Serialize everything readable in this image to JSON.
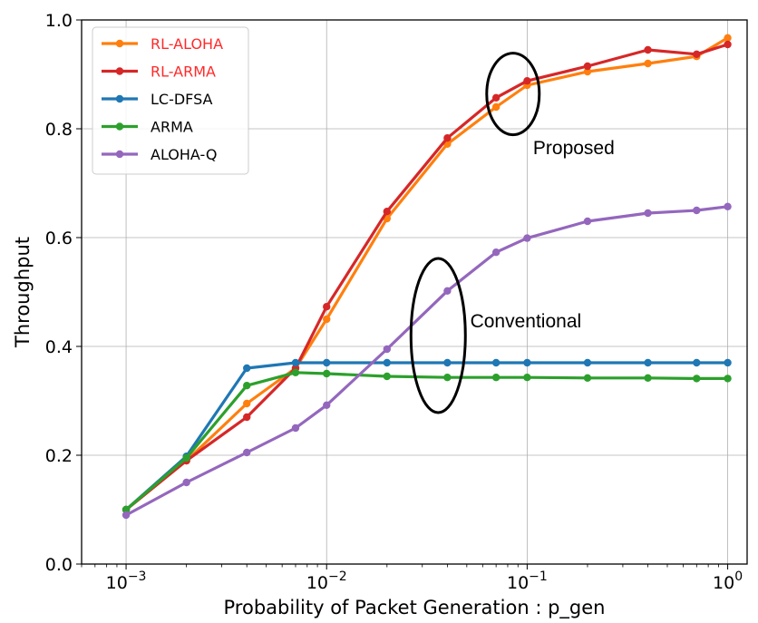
{
  "chart_data": {
    "type": "line",
    "title": "",
    "xlabel": "Probability of Packet Generation : p_gen",
    "ylabel": "Throughput",
    "xscale": "log",
    "xlim": [
      0.0006,
      1.25
    ],
    "ylim": [
      0.0,
      1.0
    ],
    "grid": true,
    "legend_position": "top-left",
    "x_ticks": [
      {
        "value": 0.001,
        "base": "10",
        "exp": "−3"
      },
      {
        "value": 0.01,
        "base": "10",
        "exp": "−2"
      },
      {
        "value": 0.1,
        "base": "10",
        "exp": "−1"
      },
      {
        "value": 1,
        "base": "10",
        "exp": "0"
      }
    ],
    "y_ticks": [
      "0.0",
      "0.2",
      "0.4",
      "0.6",
      "0.8",
      "1.0"
    ],
    "x": [
      0.001,
      0.002,
      0.004,
      0.007,
      0.01,
      0.02,
      0.04,
      0.07,
      0.1,
      0.2,
      0.4,
      0.7,
      1.0
    ],
    "series": [
      {
        "name": "RL-ALOHA",
        "color": "#ff7f0e",
        "label_color": "#ff2a2a",
        "values": [
          0.1,
          0.19,
          0.295,
          0.36,
          0.45,
          0.635,
          0.772,
          0.84,
          0.88,
          0.905,
          0.92,
          0.933,
          0.967
        ]
      },
      {
        "name": "RL-ARMA",
        "color": "#d62728",
        "label_color": "#ff2a2a",
        "values": [
          0.1,
          0.19,
          0.27,
          0.36,
          0.473,
          0.648,
          0.783,
          0.857,
          0.888,
          0.915,
          0.945,
          0.937,
          0.955
        ]
      },
      {
        "name": "LC-DFSA",
        "color": "#1f77b4",
        "label_color": "#000000",
        "values": [
          0.1,
          0.198,
          0.36,
          0.37,
          0.37,
          0.37,
          0.37,
          0.37,
          0.37,
          0.37,
          0.37,
          0.37,
          0.37
        ]
      },
      {
        "name": "ARMA",
        "color": "#2ca02c",
        "label_color": "#000000",
        "values": [
          0.1,
          0.195,
          0.328,
          0.352,
          0.35,
          0.345,
          0.343,
          0.343,
          0.343,
          0.342,
          0.342,
          0.341,
          0.341
        ]
      },
      {
        "name": "ALOHA-Q",
        "color": "#9467bd",
        "label_color": "#000000",
        "values": [
          0.09,
          0.15,
          0.205,
          0.25,
          0.292,
          0.395,
          0.502,
          0.573,
          0.599,
          0.63,
          0.645,
          0.65,
          0.657
        ]
      }
    ],
    "annotations": [
      {
        "text": "Proposed",
        "ellipse_center": [
          0.085,
          0.864
        ],
        "label_anchor": [
          0.107,
          0.765
        ]
      },
      {
        "text": "Conventional",
        "ellipse_center": [
          0.036,
          0.42
        ],
        "label_anchor": [
          0.052,
          0.447
        ]
      }
    ]
  }
}
